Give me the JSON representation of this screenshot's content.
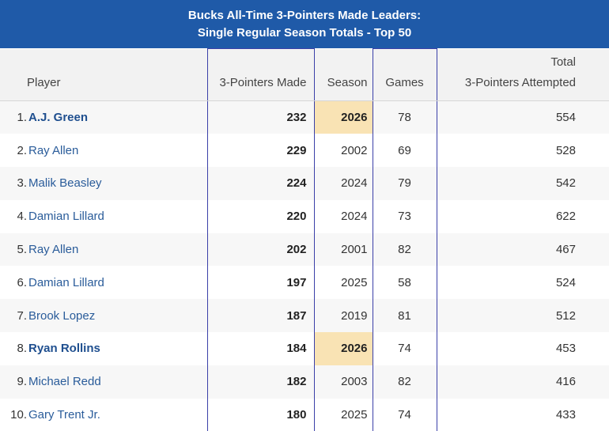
{
  "title": {
    "line1": "Bucks All-Time 3-Pointers Made Leaders:",
    "line2": "Single Regular Season Totals - Top 50"
  },
  "columns": {
    "player": "Player",
    "made": "3-Pointers Made",
    "season": "Season",
    "games": "Games",
    "attempted_line1": "Total",
    "attempted_line2": "3-Pointers Attempted"
  },
  "rows": [
    {
      "rank": "1.",
      "player": "A.J. Green",
      "made": "232",
      "season": "2026",
      "games": "78",
      "attempted": "554",
      "current": true
    },
    {
      "rank": "2.",
      "player": "Ray Allen",
      "made": "229",
      "season": "2002",
      "games": "69",
      "attempted": "528",
      "current": false
    },
    {
      "rank": "3.",
      "player": "Malik Beasley",
      "made": "224",
      "season": "2024",
      "games": "79",
      "attempted": "542",
      "current": false
    },
    {
      "rank": "4.",
      "player": "Damian Lillard",
      "made": "220",
      "season": "2024",
      "games": "73",
      "attempted": "622",
      "current": false
    },
    {
      "rank": "5.",
      "player": "Ray Allen",
      "made": "202",
      "season": "2001",
      "games": "82",
      "attempted": "467",
      "current": false
    },
    {
      "rank": "6.",
      "player": "Damian Lillard",
      "made": "197",
      "season": "2025",
      "games": "58",
      "attempted": "524",
      "current": false
    },
    {
      "rank": "7.",
      "player": "Brook Lopez",
      "made": "187",
      "season": "2019",
      "games": "81",
      "attempted": "512",
      "current": false
    },
    {
      "rank": "8.",
      "player": "Ryan Rollins",
      "made": "184",
      "season": "2026",
      "games": "74",
      "attempted": "453",
      "current": true
    },
    {
      "rank": "9.",
      "player": "Michael Redd",
      "made": "182",
      "season": "2003",
      "games": "82",
      "attempted": "416",
      "current": false
    },
    {
      "rank": "10.",
      "player": "Gary Trent Jr.",
      "made": "180",
      "season": "2025",
      "games": "74",
      "attempted": "433",
      "current": false
    }
  ]
}
